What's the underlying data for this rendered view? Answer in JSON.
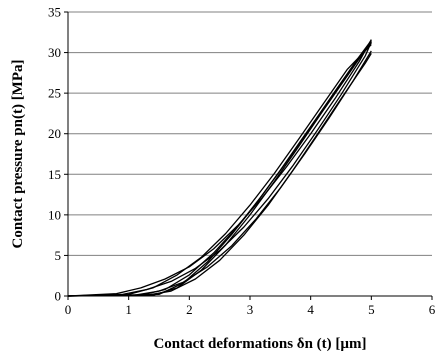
{
  "chart_data": {
    "type": "line",
    "xlabel": "Contact deformations  δn (t) [µm]",
    "ylabel": "Contact pressure pn(t) [MPa]",
    "xlim": [
      0,
      6
    ],
    "ylim": [
      0,
      35
    ],
    "x_ticks": [
      "0",
      "1",
      "2",
      "3",
      "4",
      "5",
      "6"
    ],
    "y_ticks": [
      "0",
      "5",
      "10",
      "15",
      "20",
      "25",
      "30",
      "35"
    ],
    "grid": "horizontal",
    "line_color": "#000000",
    "grid_color": "#808080",
    "series": [
      {
        "x": [
          0,
          0.8,
          1.2,
          1.6,
          2.0,
          2.4,
          2.8,
          3.2,
          3.6,
          4.0,
          4.4,
          4.8,
          5.0
        ],
        "y": [
          0,
          0.3,
          1.0,
          2.1,
          3.6,
          5.8,
          8.7,
          12.1,
          15.9,
          20.0,
          24.3,
          28.9,
          31.6
        ]
      },
      {
        "x": [
          0,
          0.9,
          1.3,
          1.7,
          2.1,
          2.5,
          2.9,
          3.3,
          3.7,
          4.1,
          4.5,
          4.9,
          5.0
        ],
        "y": [
          0,
          0.2,
          0.8,
          1.8,
          3.4,
          5.6,
          8.5,
          12.0,
          16.0,
          20.3,
          24.8,
          29.6,
          31.3
        ]
      },
      {
        "x": [
          0,
          1.1,
          1.5,
          1.9,
          2.3,
          2.7,
          3.1,
          3.5,
          3.9,
          4.3,
          4.7,
          5.0
        ],
        "y": [
          0,
          0.1,
          0.6,
          1.7,
          3.6,
          6.2,
          9.5,
          13.3,
          17.5,
          21.9,
          26.5,
          30.2
        ]
      },
      {
        "x": [
          0,
          1.3,
          1.7,
          2.1,
          2.5,
          2.9,
          3.3,
          3.7,
          4.1,
          4.5,
          4.9,
          5.0
        ],
        "y": [
          0,
          0.1,
          0.6,
          2.1,
          4.4,
          7.5,
          11.2,
          15.4,
          19.8,
          24.3,
          28.7,
          29.9
        ]
      },
      {
        "x": [
          0,
          1.2,
          1.6,
          2.0,
          2.4,
          2.8,
          3.2,
          3.6,
          4.0,
          4.4,
          4.8,
          5.0
        ],
        "y": [
          0,
          0.1,
          0.8,
          2.6,
          5.3,
          8.6,
          12.4,
          16.5,
          20.8,
          25.2,
          29.5,
          31.5
        ]
      },
      {
        "x": [
          0,
          1.4,
          1.8,
          2.2,
          2.6,
          3.0,
          3.4,
          3.8,
          4.2,
          4.6,
          5.0
        ],
        "y": [
          0,
          0.1,
          1.0,
          3.2,
          6.3,
          10.0,
          14.1,
          18.4,
          22.8,
          27.1,
          31.4
        ]
      },
      {
        "x": [
          0,
          1.0,
          1.4,
          1.8,
          2.2,
          2.6,
          3.0,
          3.4,
          3.8,
          4.2,
          4.6,
          5.0
        ],
        "y": [
          0,
          0.2,
          1.0,
          2.6,
          4.8,
          7.7,
          11.2,
          15.1,
          19.3,
          23.6,
          27.9,
          31.0
        ]
      },
      {
        "x": [
          0,
          1.5,
          1.9,
          2.3,
          2.7,
          3.1,
          3.5,
          3.9,
          4.3,
          4.7,
          5.0
        ],
        "y": [
          0,
          0.2,
          1.6,
          4.2,
          7.6,
          11.4,
          15.5,
          19.8,
          24.1,
          28.3,
          31.2
        ]
      }
    ]
  }
}
